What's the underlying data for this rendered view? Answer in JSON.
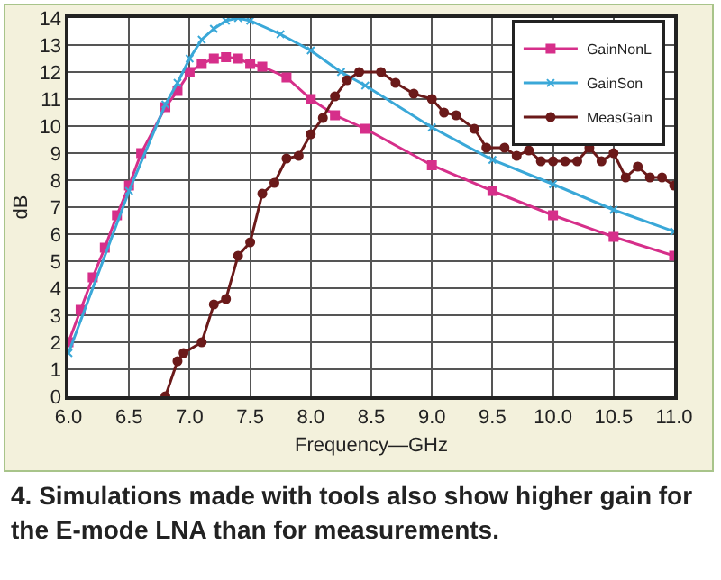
{
  "chart_data": {
    "type": "line",
    "xlabel": "Frequency—GHz",
    "ylabel": "dB",
    "xlim": [
      6.0,
      11.0
    ],
    "ylim": [
      0,
      14
    ],
    "xticks": [
      {
        "value": 6,
        "label": "6.0"
      },
      6.5,
      {
        "value": 7,
        "label": "7.0"
      },
      7.5,
      {
        "value": 8,
        "label": "8.0"
      },
      8.5,
      {
        "value": 9,
        "label": "9.0"
      },
      9.5,
      {
        "value": 10,
        "label": "10.0"
      },
      10.5,
      {
        "value": 11,
        "label": "11.0"
      }
    ],
    "yticks": [
      0,
      1,
      2,
      3,
      4,
      5,
      6,
      7,
      8,
      9,
      10,
      11,
      12,
      13,
      14
    ],
    "grid": true,
    "legend": "top right",
    "line_style": "solid",
    "series": [
      {
        "name": "GainNonL",
        "color": "#d62f8a",
        "marker": "square",
        "x": [
          6.0,
          6.1,
          6.2,
          6.3,
          6.4,
          6.5,
          6.6,
          6.8,
          6.9,
          7.0,
          7.1,
          7.2,
          7.3,
          7.4,
          7.5,
          7.6,
          7.8,
          8.0,
          8.2,
          8.45,
          9.0,
          9.5,
          10.0,
          10.5,
          11.0
        ],
        "values": [
          2.0,
          3.2,
          4.4,
          5.5,
          6.7,
          7.8,
          9.0,
          10.7,
          11.3,
          12.0,
          12.3,
          12.5,
          12.55,
          12.5,
          12.3,
          12.2,
          11.8,
          11.0,
          10.4,
          9.9,
          8.55,
          7.6,
          6.7,
          5.9,
          5.2
        ]
      },
      {
        "name": "GainSon",
        "color": "#3aa8d8",
        "marker": "cross",
        "x": [
          6.0,
          6.5,
          6.8,
          6.9,
          7.0,
          7.1,
          7.2,
          7.3,
          7.4,
          7.5,
          7.75,
          8.0,
          8.25,
          8.45,
          9.0,
          9.5,
          10.0,
          10.5,
          11.0
        ],
        "values": [
          1.6,
          7.6,
          10.8,
          11.6,
          12.5,
          13.2,
          13.6,
          13.9,
          14.0,
          13.9,
          13.4,
          12.8,
          12.0,
          11.5,
          9.95,
          8.75,
          7.85,
          6.9,
          6.1
        ]
      },
      {
        "name": "MeasGain",
        "color": "#6b1a1a",
        "marker": "circle",
        "x": [
          6.8,
          6.9,
          6.95,
          7.1,
          7.2,
          7.3,
          7.4,
          7.5,
          7.6,
          7.7,
          7.8,
          7.9,
          8.0,
          8.1,
          8.2,
          8.3,
          8.4,
          8.58,
          8.7,
          8.85,
          9.0,
          9.1,
          9.2,
          9.35,
          9.45,
          9.6,
          9.7,
          9.8,
          9.9,
          10.0,
          10.1,
          10.2,
          10.3,
          10.4,
          10.5,
          10.6,
          10.7,
          10.8,
          10.9,
          11.0
        ],
        "values": [
          0,
          1.3,
          1.6,
          2.0,
          3.4,
          3.6,
          5.2,
          5.7,
          7.5,
          7.9,
          8.8,
          8.9,
          9.7,
          10.3,
          11.1,
          11.7,
          12.0,
          12.0,
          11.6,
          11.2,
          11.0,
          10.5,
          10.4,
          9.9,
          9.2,
          9.2,
          8.9,
          9.1,
          8.7,
          8.7,
          8.7,
          8.7,
          9.2,
          8.7,
          9.0,
          8.1,
          8.5,
          8.1,
          8.1,
          7.8
        ]
      }
    ],
    "annotations": [
      "4. Simulations made with tools also show higher gain for the E-mode LNA than for measurements."
    ]
  }
}
